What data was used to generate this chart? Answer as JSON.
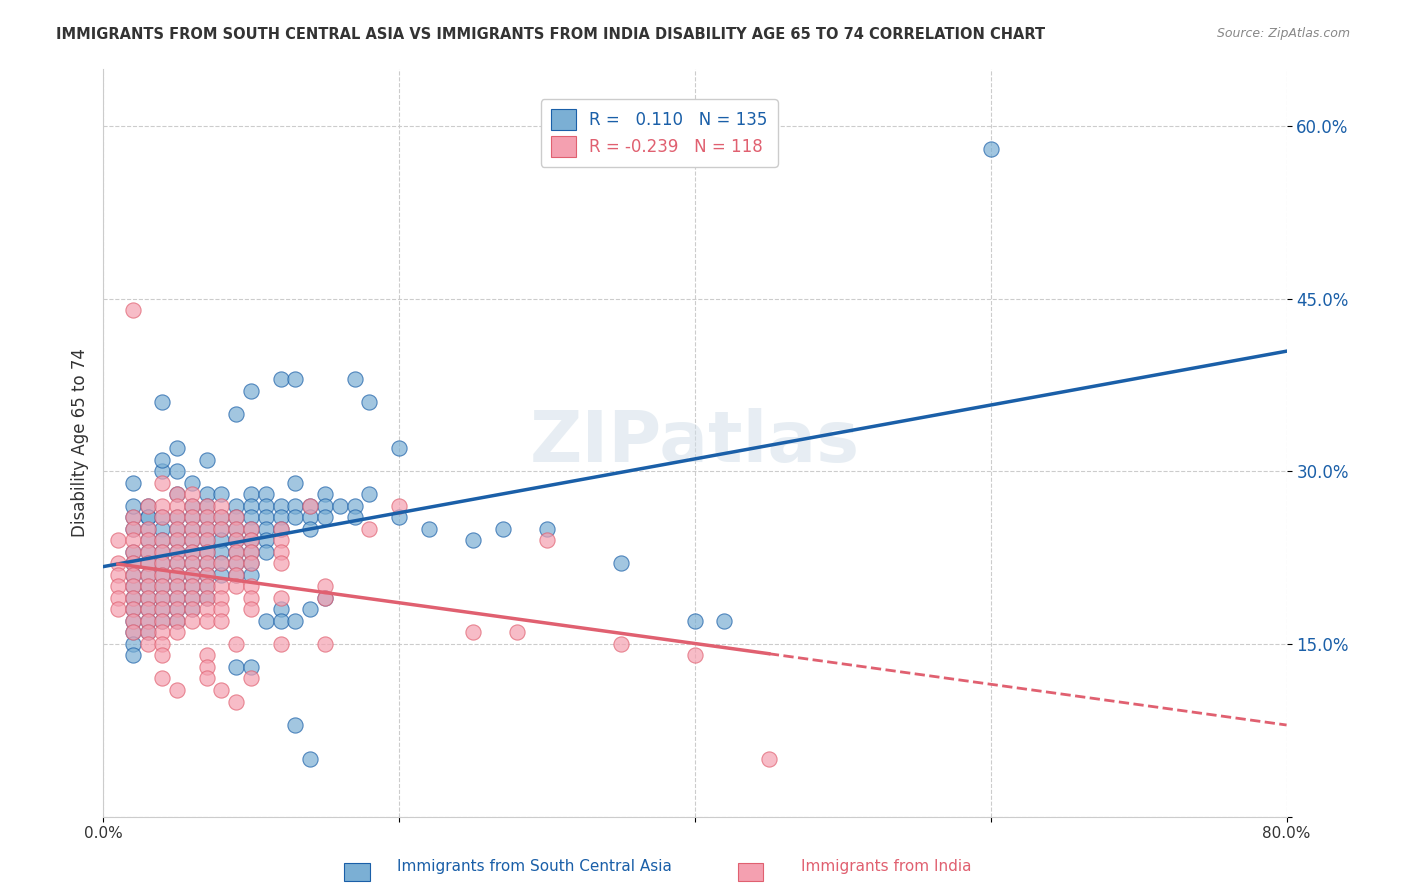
{
  "title": "IMMIGRANTS FROM SOUTH CENTRAL ASIA VS IMMIGRANTS FROM INDIA DISABILITY AGE 65 TO 74 CORRELATION CHART",
  "source": "Source: ZipAtlas.com",
  "xlabel": "",
  "ylabel": "Disability Age 65 to 74",
  "xlim": [
    0,
    0.8
  ],
  "ylim": [
    0,
    0.65
  ],
  "xticks": [
    0.0,
    0.2,
    0.4,
    0.6,
    0.8
  ],
  "xticklabels": [
    "0.0%",
    "",
    "",
    "",
    "80.0%"
  ],
  "yticks": [
    0.0,
    0.15,
    0.3,
    0.45,
    0.6
  ],
  "yticklabels": [
    "",
    "15.0%",
    "30.0%",
    "45.0%",
    "60.0%"
  ],
  "blue_color": "#7bafd4",
  "pink_color": "#f4a0b0",
  "blue_line_color": "#1a5fa8",
  "pink_line_color": "#e06070",
  "R_blue": 0.11,
  "N_blue": 135,
  "R_pink": -0.239,
  "N_pink": 118,
  "legend_label_blue": "Immigrants from South Central Asia",
  "legend_label_pink": "Immigrants from India",
  "watermark": "ZIPatlas",
  "background_color": "#ffffff",
  "blue_scatter": [
    [
      0.02,
      0.29
    ],
    [
      0.02,
      0.26
    ],
    [
      0.02,
      0.25
    ],
    [
      0.02,
      0.23
    ],
    [
      0.02,
      0.22
    ],
    [
      0.02,
      0.21
    ],
    [
      0.02,
      0.2
    ],
    [
      0.02,
      0.19
    ],
    [
      0.02,
      0.18
    ],
    [
      0.02,
      0.17
    ],
    [
      0.02,
      0.16
    ],
    [
      0.02,
      0.15
    ],
    [
      0.02,
      0.14
    ],
    [
      0.02,
      0.27
    ],
    [
      0.03,
      0.27
    ],
    [
      0.03,
      0.26
    ],
    [
      0.03,
      0.25
    ],
    [
      0.03,
      0.24
    ],
    [
      0.03,
      0.23
    ],
    [
      0.03,
      0.22
    ],
    [
      0.03,
      0.21
    ],
    [
      0.03,
      0.2
    ],
    [
      0.03,
      0.19
    ],
    [
      0.03,
      0.18
    ],
    [
      0.03,
      0.17
    ],
    [
      0.03,
      0.16
    ],
    [
      0.03,
      0.26
    ],
    [
      0.04,
      0.36
    ],
    [
      0.04,
      0.3
    ],
    [
      0.04,
      0.26
    ],
    [
      0.04,
      0.25
    ],
    [
      0.04,
      0.24
    ],
    [
      0.04,
      0.23
    ],
    [
      0.04,
      0.22
    ],
    [
      0.04,
      0.21
    ],
    [
      0.04,
      0.2
    ],
    [
      0.04,
      0.19
    ],
    [
      0.04,
      0.18
    ],
    [
      0.04,
      0.17
    ],
    [
      0.04,
      0.31
    ],
    [
      0.05,
      0.32
    ],
    [
      0.05,
      0.3
    ],
    [
      0.05,
      0.28
    ],
    [
      0.05,
      0.26
    ],
    [
      0.05,
      0.25
    ],
    [
      0.05,
      0.24
    ],
    [
      0.05,
      0.23
    ],
    [
      0.05,
      0.22
    ],
    [
      0.05,
      0.21
    ],
    [
      0.05,
      0.2
    ],
    [
      0.05,
      0.19
    ],
    [
      0.05,
      0.18
    ],
    [
      0.05,
      0.17
    ],
    [
      0.06,
      0.29
    ],
    [
      0.06,
      0.27
    ],
    [
      0.06,
      0.26
    ],
    [
      0.06,
      0.25
    ],
    [
      0.06,
      0.24
    ],
    [
      0.06,
      0.23
    ],
    [
      0.06,
      0.22
    ],
    [
      0.06,
      0.21
    ],
    [
      0.06,
      0.2
    ],
    [
      0.06,
      0.19
    ],
    [
      0.06,
      0.18
    ],
    [
      0.07,
      0.31
    ],
    [
      0.07,
      0.28
    ],
    [
      0.07,
      0.27
    ],
    [
      0.07,
      0.26
    ],
    [
      0.07,
      0.25
    ],
    [
      0.07,
      0.24
    ],
    [
      0.07,
      0.23
    ],
    [
      0.07,
      0.22
    ],
    [
      0.07,
      0.21
    ],
    [
      0.07,
      0.2
    ],
    [
      0.07,
      0.19
    ],
    [
      0.08,
      0.28
    ],
    [
      0.08,
      0.26
    ],
    [
      0.08,
      0.25
    ],
    [
      0.08,
      0.24
    ],
    [
      0.08,
      0.23
    ],
    [
      0.08,
      0.22
    ],
    [
      0.08,
      0.21
    ],
    [
      0.09,
      0.35
    ],
    [
      0.09,
      0.27
    ],
    [
      0.09,
      0.26
    ],
    [
      0.09,
      0.25
    ],
    [
      0.09,
      0.24
    ],
    [
      0.09,
      0.23
    ],
    [
      0.09,
      0.22
    ],
    [
      0.09,
      0.21
    ],
    [
      0.09,
      0.13
    ],
    [
      0.1,
      0.37
    ],
    [
      0.1,
      0.28
    ],
    [
      0.1,
      0.27
    ],
    [
      0.1,
      0.26
    ],
    [
      0.1,
      0.25
    ],
    [
      0.1,
      0.24
    ],
    [
      0.1,
      0.23
    ],
    [
      0.1,
      0.22
    ],
    [
      0.1,
      0.21
    ],
    [
      0.1,
      0.13
    ],
    [
      0.11,
      0.28
    ],
    [
      0.11,
      0.27
    ],
    [
      0.11,
      0.26
    ],
    [
      0.11,
      0.25
    ],
    [
      0.11,
      0.24
    ],
    [
      0.11,
      0.23
    ],
    [
      0.11,
      0.17
    ],
    [
      0.12,
      0.38
    ],
    [
      0.12,
      0.27
    ],
    [
      0.12,
      0.26
    ],
    [
      0.12,
      0.25
    ],
    [
      0.12,
      0.18
    ],
    [
      0.12,
      0.17
    ],
    [
      0.13,
      0.38
    ],
    [
      0.13,
      0.29
    ],
    [
      0.13,
      0.27
    ],
    [
      0.13,
      0.26
    ],
    [
      0.13,
      0.17
    ],
    [
      0.13,
      0.08
    ],
    [
      0.14,
      0.27
    ],
    [
      0.14,
      0.26
    ],
    [
      0.14,
      0.25
    ],
    [
      0.14,
      0.18
    ],
    [
      0.14,
      0.05
    ],
    [
      0.15,
      0.28
    ],
    [
      0.15,
      0.27
    ],
    [
      0.15,
      0.26
    ],
    [
      0.15,
      0.19
    ],
    [
      0.16,
      0.27
    ],
    [
      0.17,
      0.38
    ],
    [
      0.17,
      0.27
    ],
    [
      0.17,
      0.26
    ],
    [
      0.18,
      0.36
    ],
    [
      0.18,
      0.28
    ],
    [
      0.2,
      0.32
    ],
    [
      0.2,
      0.26
    ],
    [
      0.22,
      0.25
    ],
    [
      0.25,
      0.24
    ],
    [
      0.27,
      0.25
    ],
    [
      0.3,
      0.25
    ],
    [
      0.35,
      0.22
    ],
    [
      0.4,
      0.17
    ],
    [
      0.42,
      0.17
    ],
    [
      0.6,
      0.58
    ]
  ],
  "pink_scatter": [
    [
      0.01,
      0.24
    ],
    [
      0.01,
      0.22
    ],
    [
      0.01,
      0.21
    ],
    [
      0.01,
      0.2
    ],
    [
      0.01,
      0.19
    ],
    [
      0.01,
      0.18
    ],
    [
      0.02,
      0.44
    ],
    [
      0.02,
      0.26
    ],
    [
      0.02,
      0.25
    ],
    [
      0.02,
      0.24
    ],
    [
      0.02,
      0.23
    ],
    [
      0.02,
      0.22
    ],
    [
      0.02,
      0.21
    ],
    [
      0.02,
      0.2
    ],
    [
      0.02,
      0.19
    ],
    [
      0.02,
      0.18
    ],
    [
      0.02,
      0.17
    ],
    [
      0.02,
      0.16
    ],
    [
      0.03,
      0.27
    ],
    [
      0.03,
      0.25
    ],
    [
      0.03,
      0.24
    ],
    [
      0.03,
      0.23
    ],
    [
      0.03,
      0.22
    ],
    [
      0.03,
      0.21
    ],
    [
      0.03,
      0.2
    ],
    [
      0.03,
      0.19
    ],
    [
      0.03,
      0.18
    ],
    [
      0.03,
      0.17
    ],
    [
      0.03,
      0.16
    ],
    [
      0.03,
      0.15
    ],
    [
      0.04,
      0.29
    ],
    [
      0.04,
      0.27
    ],
    [
      0.04,
      0.26
    ],
    [
      0.04,
      0.24
    ],
    [
      0.04,
      0.23
    ],
    [
      0.04,
      0.22
    ],
    [
      0.04,
      0.21
    ],
    [
      0.04,
      0.2
    ],
    [
      0.04,
      0.19
    ],
    [
      0.04,
      0.18
    ],
    [
      0.04,
      0.17
    ],
    [
      0.04,
      0.16
    ],
    [
      0.04,
      0.15
    ],
    [
      0.04,
      0.14
    ],
    [
      0.04,
      0.12
    ],
    [
      0.05,
      0.28
    ],
    [
      0.05,
      0.27
    ],
    [
      0.05,
      0.26
    ],
    [
      0.05,
      0.25
    ],
    [
      0.05,
      0.24
    ],
    [
      0.05,
      0.23
    ],
    [
      0.05,
      0.22
    ],
    [
      0.05,
      0.21
    ],
    [
      0.05,
      0.2
    ],
    [
      0.05,
      0.19
    ],
    [
      0.05,
      0.18
    ],
    [
      0.05,
      0.17
    ],
    [
      0.05,
      0.16
    ],
    [
      0.05,
      0.11
    ],
    [
      0.06,
      0.28
    ],
    [
      0.06,
      0.27
    ],
    [
      0.06,
      0.26
    ],
    [
      0.06,
      0.25
    ],
    [
      0.06,
      0.24
    ],
    [
      0.06,
      0.23
    ],
    [
      0.06,
      0.22
    ],
    [
      0.06,
      0.21
    ],
    [
      0.06,
      0.2
    ],
    [
      0.06,
      0.19
    ],
    [
      0.06,
      0.18
    ],
    [
      0.06,
      0.17
    ],
    [
      0.07,
      0.27
    ],
    [
      0.07,
      0.26
    ],
    [
      0.07,
      0.25
    ],
    [
      0.07,
      0.24
    ],
    [
      0.07,
      0.23
    ],
    [
      0.07,
      0.22
    ],
    [
      0.07,
      0.21
    ],
    [
      0.07,
      0.2
    ],
    [
      0.07,
      0.19
    ],
    [
      0.07,
      0.18
    ],
    [
      0.07,
      0.17
    ],
    [
      0.07,
      0.14
    ],
    [
      0.07,
      0.13
    ],
    [
      0.07,
      0.12
    ],
    [
      0.08,
      0.27
    ],
    [
      0.08,
      0.26
    ],
    [
      0.08,
      0.25
    ],
    [
      0.08,
      0.22
    ],
    [
      0.08,
      0.2
    ],
    [
      0.08,
      0.19
    ],
    [
      0.08,
      0.18
    ],
    [
      0.08,
      0.17
    ],
    [
      0.08,
      0.11
    ],
    [
      0.09,
      0.26
    ],
    [
      0.09,
      0.25
    ],
    [
      0.09,
      0.24
    ],
    [
      0.09,
      0.23
    ],
    [
      0.09,
      0.22
    ],
    [
      0.09,
      0.21
    ],
    [
      0.09,
      0.2
    ],
    [
      0.09,
      0.15
    ],
    [
      0.09,
      0.1
    ],
    [
      0.1,
      0.25
    ],
    [
      0.1,
      0.24
    ],
    [
      0.1,
      0.23
    ],
    [
      0.1,
      0.22
    ],
    [
      0.1,
      0.2
    ],
    [
      0.1,
      0.19
    ],
    [
      0.1,
      0.18
    ],
    [
      0.1,
      0.12
    ],
    [
      0.12,
      0.25
    ],
    [
      0.12,
      0.24
    ],
    [
      0.12,
      0.23
    ],
    [
      0.12,
      0.22
    ],
    [
      0.12,
      0.19
    ],
    [
      0.12,
      0.15
    ],
    [
      0.14,
      0.27
    ],
    [
      0.15,
      0.2
    ],
    [
      0.15,
      0.19
    ],
    [
      0.15,
      0.15
    ],
    [
      0.18,
      0.25
    ],
    [
      0.2,
      0.27
    ],
    [
      0.25,
      0.16
    ],
    [
      0.28,
      0.16
    ],
    [
      0.3,
      0.24
    ],
    [
      0.35,
      0.15
    ],
    [
      0.4,
      0.14
    ],
    [
      0.45,
      0.05
    ]
  ]
}
